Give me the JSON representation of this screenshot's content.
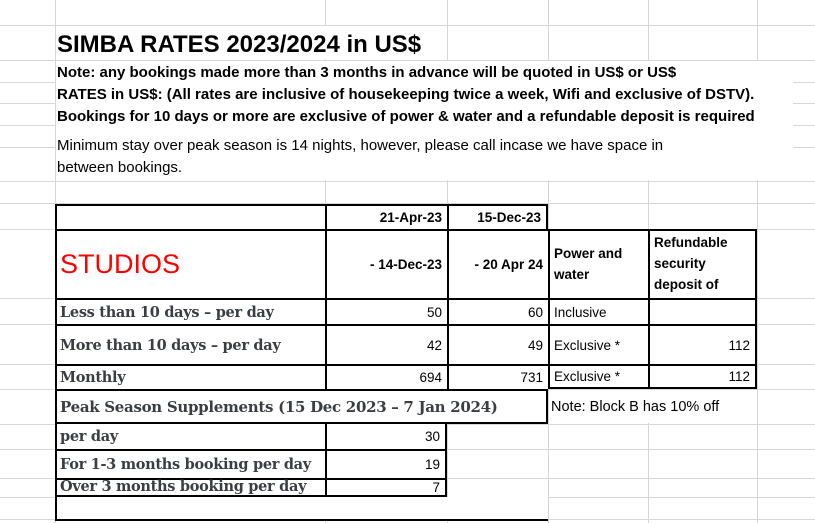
{
  "title": "SIMBA RATES 2023/2024 in US$",
  "notes": {
    "line1": "Note: any bookings made more than 3 months in advance will be quoted in US$ or US$",
    "line2": "RATES in US$: (All rates are inclusive of housekeeping twice a week, Wifi and exclusive of DSTV).",
    "line3": "Bookings for 10 days or more are exclusive of power & water and a refundable deposit is required",
    "line4": "Minimum stay over peak season is 14 nights, however, please call incase we have space in",
    "line5": "between bookings."
  },
  "table": {
    "section_label": "STUDIOS",
    "period1": {
      "start": "21-Apr-23",
      "end": "- 14-Dec-23"
    },
    "period2": {
      "start": "15-Dec-23",
      "end": "- 20 Apr 24"
    },
    "col_power": "Power and water",
    "col_deposit": "Refundable security deposit of",
    "rows": [
      {
        "label": "Less than 10 days – per day",
        "rate1": "50",
        "rate2": "60",
        "power": "Inclusive",
        "deposit": ""
      },
      {
        "label": "More than 10 days – per day",
        "rate1": "42",
        "rate2": "49",
        "power": "Exclusive *",
        "deposit": "112"
      },
      {
        "label": "Monthly",
        "rate1": "694",
        "rate2": "731",
        "power": "Exclusive *",
        "deposit": "112"
      }
    ],
    "peak_header": "Peak Season Supplements (15 Dec 2023 – 7 Jan 2024)",
    "peak_note": "Note: Block B has 10% off",
    "peak_rows": [
      {
        "label": "per day",
        "value": "30"
      },
      {
        "label": "For 1-3 months booking per day",
        "value": "19"
      },
      {
        "label": "Over 3 months booking per day",
        "value": "7"
      }
    ]
  },
  "colors": {
    "red": "#ff0000",
    "ink": "#3a3e43",
    "grid": "#d6d6d6",
    "border": "#000000"
  }
}
